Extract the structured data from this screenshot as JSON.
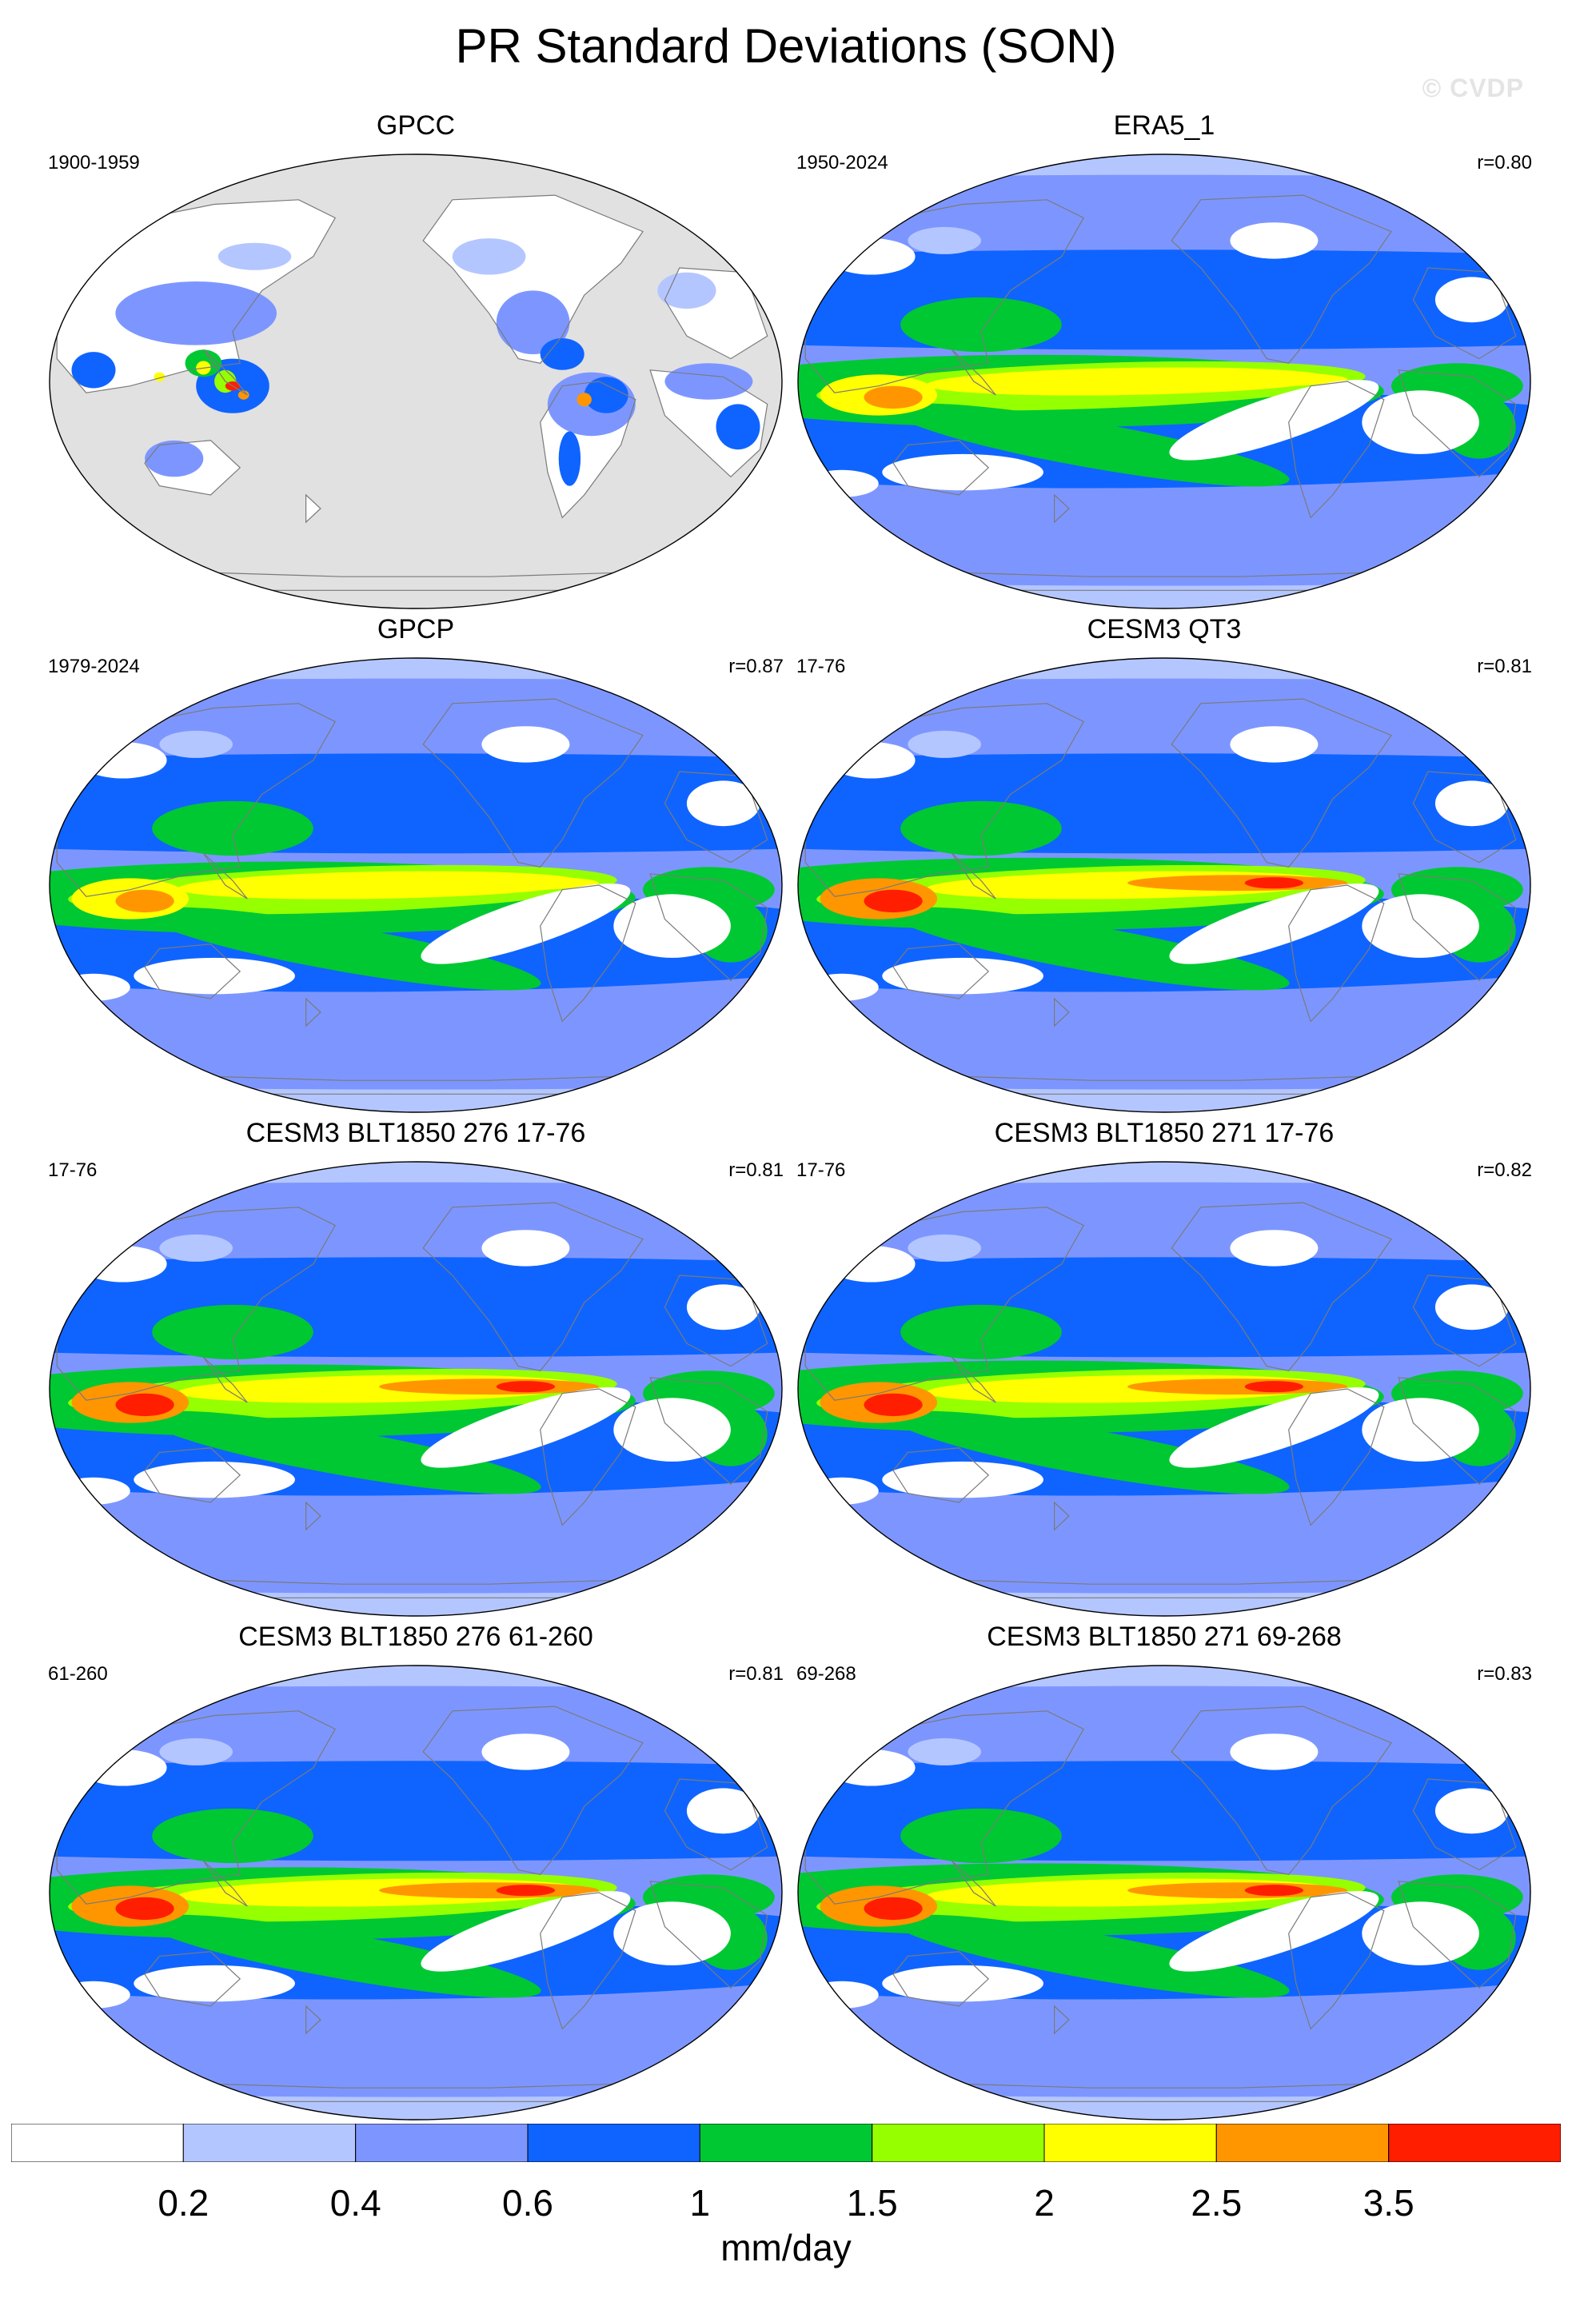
{
  "title": "PR Standard Deviations (SON)",
  "watermark": "© CVDP",
  "panels": [
    {
      "title": "GPCC",
      "period": "1900-1959",
      "corr": "",
      "style": "land"
    },
    {
      "title": "ERA5_1",
      "period": "1950-2024",
      "corr": "r=0.80",
      "style": "reanalysis"
    },
    {
      "title": "GPCP",
      "period": "1979-2024",
      "corr": "r=0.87",
      "style": "obs"
    },
    {
      "title": "CESM3 QT3",
      "period": "17-76",
      "corr": "r=0.81",
      "style": "model"
    },
    {
      "title": "CESM3 BLT1850 276 17-76",
      "period": "17-76",
      "corr": "r=0.81",
      "style": "model"
    },
    {
      "title": "CESM3 BLT1850 271 17-76",
      "period": "17-76",
      "corr": "r=0.82",
      "style": "model"
    },
    {
      "title": "CESM3 BLT1850 276 61-260",
      "period": "61-260",
      "corr": "r=0.81",
      "style": "model"
    },
    {
      "title": "CESM3 BLT1850 271 69-268",
      "period": "69-268",
      "corr": "r=0.83",
      "style": "model"
    }
  ],
  "colorbar": {
    "units": "mm/day",
    "levels": [
      "0.2",
      "0.4",
      "0.6",
      "1",
      "1.5",
      "2",
      "2.5",
      "3.5"
    ],
    "colors": [
      "#ffffff",
      "#b4c6ff",
      "#7d96ff",
      "#0f64ff",
      "#00c832",
      "#96ff00",
      "#ffff00",
      "#ff9600",
      "#ff1e00"
    ]
  },
  "missing_color": "#e1e1e1"
}
